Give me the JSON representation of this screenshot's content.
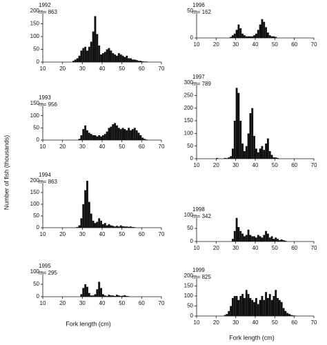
{
  "ylabel": "Number of fish (thousands)",
  "xlabels": [
    "Fork length (cm)",
    "Fork length (cm)"
  ],
  "chart_data": [
    {
      "type": "histogram",
      "title": "1992",
      "subtitle": "n = 863",
      "color": "#111111",
      "xlim": [
        10,
        70
      ],
      "xticks": [
        10,
        20,
        30,
        40,
        50,
        60,
        70
      ],
      "ylim": [
        0,
        200
      ],
      "yticks": [
        0,
        50,
        100,
        150,
        200
      ],
      "bins": [
        20,
        21,
        22,
        23,
        24,
        25,
        26,
        27,
        28,
        29,
        30,
        31,
        32,
        33,
        34,
        35,
        36,
        37,
        38,
        39,
        40,
        41,
        42,
        43,
        44,
        45,
        46,
        47,
        48,
        49,
        50,
        51,
        52,
        53,
        54,
        55,
        56,
        57,
        58,
        59,
        60,
        61,
        62,
        63,
        64,
        65
      ],
      "values": [
        0,
        0,
        0,
        0,
        0,
        5,
        10,
        15,
        25,
        45,
        55,
        60,
        45,
        60,
        80,
        120,
        180,
        110,
        65,
        30,
        35,
        40,
        50,
        55,
        45,
        35,
        30,
        25,
        35,
        30,
        25,
        20,
        25,
        15,
        15,
        10,
        10,
        8,
        5,
        5,
        3,
        2,
        2,
        0,
        0
      ]
    },
    {
      "type": "histogram",
      "title": "1993",
      "subtitle": "n = 956",
      "color": "#111111",
      "xlim": [
        10,
        70
      ],
      "xticks": [
        10,
        20,
        30,
        40,
        50,
        60,
        70
      ],
      "ylim": [
        0,
        150
      ],
      "yticks": [
        0,
        50,
        100,
        150
      ],
      "bins": [
        20,
        21,
        22,
        23,
        24,
        25,
        26,
        27,
        28,
        29,
        30,
        31,
        32,
        33,
        34,
        35,
        36,
        37,
        38,
        39,
        40,
        41,
        42,
        43,
        44,
        45,
        46,
        47,
        48,
        49,
        50,
        51,
        52,
        53,
        54,
        55,
        56,
        57,
        58,
        59,
        60,
        61,
        62,
        63,
        64,
        65
      ],
      "values": [
        0,
        0,
        0,
        0,
        0,
        0,
        0,
        0,
        5,
        20,
        45,
        60,
        40,
        30,
        25,
        20,
        20,
        15,
        20,
        15,
        20,
        25,
        35,
        50,
        55,
        65,
        70,
        60,
        50,
        45,
        50,
        45,
        40,
        50,
        40,
        45,
        50,
        40,
        30,
        20,
        10,
        5,
        2,
        0,
        0
      ]
    },
    {
      "type": "histogram",
      "title": "1994",
      "subtitle": "n = 863",
      "color": "#111111",
      "xlim": [
        10,
        70
      ],
      "xticks": [
        10,
        20,
        30,
        40,
        50,
        60,
        70
      ],
      "ylim": [
        0,
        200
      ],
      "yticks": [
        0,
        50,
        100,
        150,
        200
      ],
      "bins": [
        20,
        21,
        22,
        23,
        24,
        25,
        26,
        27,
        28,
        29,
        30,
        31,
        32,
        33,
        34,
        35,
        36,
        37,
        38,
        39,
        40,
        41,
        42,
        43,
        44,
        45,
        46,
        47,
        48,
        49,
        50,
        51,
        52,
        53,
        54,
        55,
        56,
        57,
        58,
        59,
        60,
        61,
        62,
        63,
        64,
        65
      ],
      "values": [
        0,
        0,
        0,
        0,
        0,
        0,
        0,
        3,
        10,
        40,
        100,
        160,
        200,
        110,
        60,
        30,
        20,
        25,
        40,
        30,
        15,
        20,
        10,
        15,
        10,
        8,
        5,
        8,
        5,
        10,
        6,
        5,
        5,
        4,
        5,
        3,
        2,
        0,
        0,
        0,
        0,
        0,
        0,
        0,
        0
      ]
    },
    {
      "type": "histogram",
      "title": "1995",
      "subtitle": "n = 295",
      "color": "#111111",
      "xlim": [
        10,
        70
      ],
      "xticks": [
        10,
        20,
        30,
        40,
        50,
        60,
        70
      ],
      "ylim": [
        0,
        100
      ],
      "yticks": [
        0,
        50,
        100
      ],
      "bins": [
        20,
        21,
        22,
        23,
        24,
        25,
        26,
        27,
        28,
        29,
        30,
        31,
        32,
        33,
        34,
        35,
        36,
        37,
        38,
        39,
        40,
        41,
        42,
        43,
        44,
        45,
        46,
        47,
        48,
        49,
        50,
        51,
        52,
        53,
        54,
        55,
        56,
        57,
        58,
        59,
        60,
        61,
        62,
        63,
        64,
        65
      ],
      "values": [
        0,
        0,
        0,
        0,
        0,
        0,
        0,
        0,
        0,
        10,
        35,
        50,
        40,
        15,
        5,
        5,
        10,
        30,
        60,
        35,
        10,
        5,
        3,
        8,
        5,
        5,
        3,
        8,
        5,
        3,
        4,
        6,
        3,
        2,
        0,
        0,
        0,
        0,
        0,
        0,
        0,
        0,
        0,
        0,
        0
      ]
    },
    {
      "type": "histogram",
      "title": "1996",
      "subtitle": "n = 162",
      "color": "#111111",
      "xlim": [
        10,
        70
      ],
      "xticks": [
        10,
        20,
        30,
        40,
        50,
        60,
        70
      ],
      "ylim": [
        0,
        50
      ],
      "yticks": [
        0,
        50
      ],
      "bins": [
        20,
        21,
        22,
        23,
        24,
        25,
        26,
        27,
        28,
        29,
        30,
        31,
        32,
        33,
        34,
        35,
        36,
        37,
        38,
        39,
        40,
        41,
        42,
        43,
        44,
        45,
        46,
        47,
        48,
        49,
        50,
        51,
        52,
        53,
        54,
        55,
        56,
        57,
        58,
        59,
        60,
        61,
        62,
        63,
        64,
        65
      ],
      "values": [
        0,
        0,
        0,
        0,
        0,
        0,
        0,
        2,
        5,
        8,
        15,
        25,
        18,
        8,
        5,
        3,
        3,
        3,
        3,
        5,
        8,
        15,
        25,
        35,
        30,
        20,
        10,
        5,
        3,
        3,
        2,
        0,
        0,
        0,
        0,
        0,
        0,
        0,
        0,
        0,
        0,
        0,
        0,
        0,
        0
      ]
    },
    {
      "type": "histogram",
      "title": "1997",
      "subtitle": "n = 789",
      "color": "#111111",
      "xlim": [
        10,
        70
      ],
      "xticks": [
        10,
        20,
        30,
        40,
        50,
        60,
        70
      ],
      "ylim": [
        0,
        300
      ],
      "yticks": [
        0,
        50,
        100,
        150,
        200,
        250,
        300
      ],
      "bins": [
        20,
        21,
        22,
        23,
        24,
        25,
        26,
        27,
        28,
        29,
        30,
        31,
        32,
        33,
        34,
        35,
        36,
        37,
        38,
        39,
        40,
        41,
        42,
        43,
        44,
        45,
        46,
        47,
        48,
        49,
        50,
        51,
        52,
        53,
        54,
        55,
        56,
        57,
        58,
        59,
        60,
        61,
        62,
        63,
        64,
        65
      ],
      "values": [
        3,
        0,
        0,
        0,
        3,
        2,
        5,
        10,
        40,
        150,
        280,
        260,
        150,
        60,
        30,
        50,
        100,
        180,
        200,
        90,
        40,
        25,
        40,
        50,
        35,
        60,
        80,
        30,
        15,
        5,
        5,
        3,
        0,
        0,
        0,
        0,
        0,
        0,
        0,
        0,
        0,
        0,
        0,
        0,
        0
      ]
    },
    {
      "type": "histogram",
      "title": "1998",
      "subtitle": "n = 342",
      "color": "#111111",
      "xlim": [
        10,
        70
      ],
      "xticks": [
        10,
        20,
        30,
        40,
        50,
        60,
        70
      ],
      "ylim": [
        0,
        100
      ],
      "yticks": [
        0,
        50,
        100
      ],
      "bins": [
        20,
        21,
        22,
        23,
        24,
        25,
        26,
        27,
        28,
        29,
        30,
        31,
        32,
        33,
        34,
        35,
        36,
        37,
        38,
        39,
        40,
        41,
        42,
        43,
        44,
        45,
        46,
        47,
        48,
        49,
        50,
        51,
        52,
        53,
        54,
        55,
        56,
        57,
        58,
        59,
        60,
        61,
        62,
        63,
        64,
        65
      ],
      "values": [
        0,
        0,
        0,
        0,
        0,
        0,
        0,
        0,
        10,
        40,
        90,
        55,
        40,
        30,
        20,
        25,
        45,
        25,
        20,
        20,
        15,
        25,
        20,
        15,
        25,
        40,
        30,
        15,
        20,
        10,
        15,
        10,
        5,
        8,
        5,
        3,
        0,
        0,
        0,
        0,
        0,
        0,
        0,
        0,
        0
      ]
    },
    {
      "type": "histogram",
      "title": "1999",
      "subtitle": "n = 825",
      "color": "#111111",
      "xlim": [
        10,
        70
      ],
      "xticks": [
        10,
        20,
        30,
        40,
        50,
        60,
        70
      ],
      "ylim": [
        0,
        200
      ],
      "yticks": [
        0,
        50,
        100,
        150,
        200
      ],
      "bins": [
        20,
        21,
        22,
        23,
        24,
        25,
        26,
        27,
        28,
        29,
        30,
        31,
        32,
        33,
        34,
        35,
        36,
        37,
        38,
        39,
        40,
        41,
        42,
        43,
        44,
        45,
        46,
        47,
        48,
        49,
        50,
        51,
        52,
        53,
        54,
        55,
        56,
        57,
        58,
        59,
        60,
        61,
        62,
        63,
        64,
        65
      ],
      "values": [
        0,
        0,
        0,
        0,
        5,
        10,
        25,
        50,
        90,
        100,
        100,
        80,
        100,
        110,
        90,
        130,
        110,
        90,
        80,
        70,
        90,
        60,
        80,
        100,
        80,
        120,
        90,
        110,
        80,
        100,
        130,
        90,
        80,
        70,
        40,
        25,
        15,
        10,
        5,
        3,
        2,
        0,
        0,
        0,
        0
      ]
    }
  ]
}
